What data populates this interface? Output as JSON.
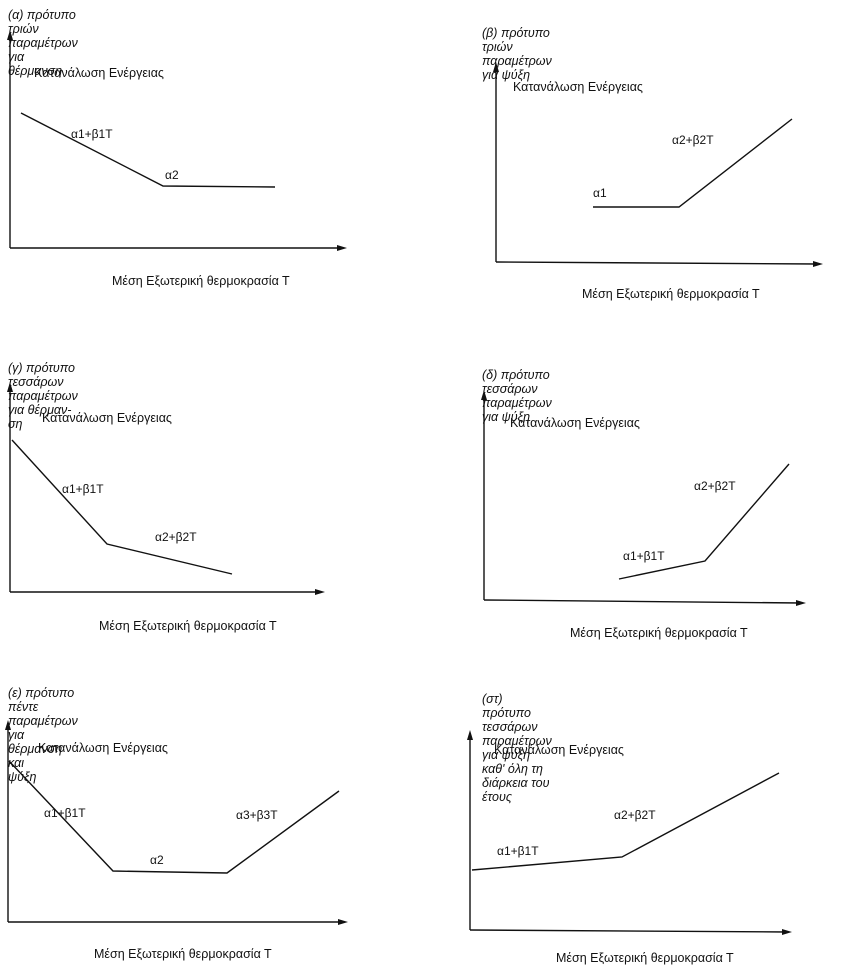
{
  "panels": [
    {
      "id": "a",
      "title": "(α) πρότυπο τριών  παραμέτρων για θέρμανση",
      "ylabel": "Κατανάλωση Ενέργειας",
      "xlabel": "Μέση Εξωτερική θερμοκρασία Τ",
      "segments": [
        "α1+β1T",
        "α2"
      ]
    },
    {
      "id": "b",
      "title": "(β) πρότυπο τριών  παραμέτρων για ψύξη",
      "ylabel": "Κατανάλωση Ενέργειας",
      "xlabel": "Μέση Εξωτερική θερμοκρασία Τ",
      "segments": [
        "α1",
        "α2+β2T"
      ]
    },
    {
      "id": "c",
      "title": "(γ) πρότυπο τεσσάρων παραμέτρων για θέρμαν-\nση",
      "ylabel": "Κατανάλωση Ενέργειας",
      "xlabel": "Μέση Εξωτερική θερμοκρασία Τ",
      "segments": [
        "α1+β1T",
        "α2+β2T"
      ]
    },
    {
      "id": "d",
      "title": "(δ) πρότυπο τεσσάρων παραμέτρων για ψύξη",
      "ylabel": "Κατανάλωση Ενέργειας",
      "xlabel": "Μέση Εξωτερική θερμοκρασία Τ",
      "segments": [
        "α1+β1T",
        "α2+β2T"
      ]
    },
    {
      "id": "e",
      "title": "(ε) πρότυπο πέντε παραμέτρων για θέρμανση και\nψύξη",
      "ylabel": "Κατανάλωση Ενέργειας",
      "xlabel": "Μέση Εξωτερική θερμοκρασία Τ",
      "segments": [
        "α1+β1T",
        "α2",
        "α3+β3T"
      ]
    },
    {
      "id": "f",
      "title": "(στ) πρότυπο τεσσάρων παραμέτρων για ψύξη\nκαθ' όλη τη διάρκεια του έτους",
      "ylabel": "Κατανάλωση Ενέργειας",
      "xlabel": "Μέση Εξωτερική θερμοκρασία Τ",
      "segments": [
        "α1+β1T",
        "α2+β2T"
      ]
    }
  ]
}
